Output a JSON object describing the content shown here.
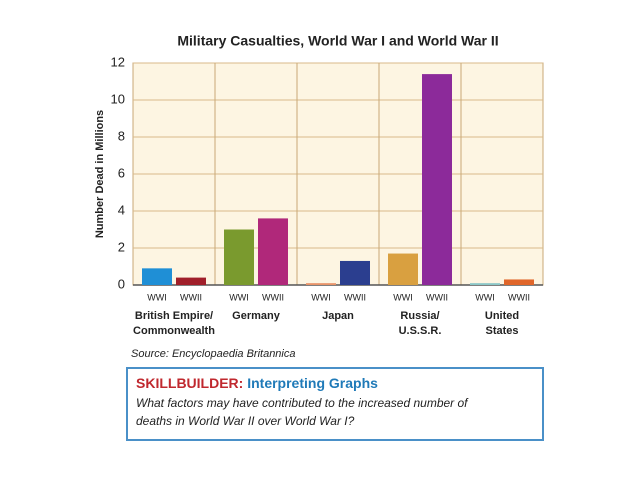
{
  "chart_data": {
    "type": "bar",
    "title": "Military Casualties, World War I and World War II",
    "y_label": "Number Dead in Millions",
    "categories": [
      [
        "British Empire/",
        "Commonwealth"
      ],
      [
        "Germany"
      ],
      [
        "Japan"
      ],
      [
        "Russia/",
        "U.S.S.R."
      ],
      [
        "United",
        "States"
      ]
    ],
    "series": [
      {
        "name": "WWI",
        "values": [
          0.9,
          3.0,
          0.1,
          1.7,
          0.1
        ],
        "colors": [
          "#1f8fd6",
          "#7a9a2e",
          "#e8946a",
          "#d9a040",
          "#8cc8c8"
        ]
      },
      {
        "name": "WWII",
        "values": [
          0.4,
          3.6,
          1.3,
          11.4,
          0.3
        ],
        "colors": [
          "#a01f2a",
          "#b0287a",
          "#2b3e8f",
          "#8c2a9a",
          "#e0662a"
        ]
      }
    ],
    "ylim": [
      0,
      12
    ],
    "yticks": [
      0,
      2,
      4,
      6,
      8,
      10,
      12
    ],
    "grid": true
  },
  "source": "Source: Encyclopaedia Britannica",
  "skillbuilder": {
    "label": "SKILLBUILDER:",
    "title": "Interpreting Graphs",
    "question": [
      "What factors may have contributed to the increased number of",
      "deaths in World War II over World War I?"
    ]
  }
}
